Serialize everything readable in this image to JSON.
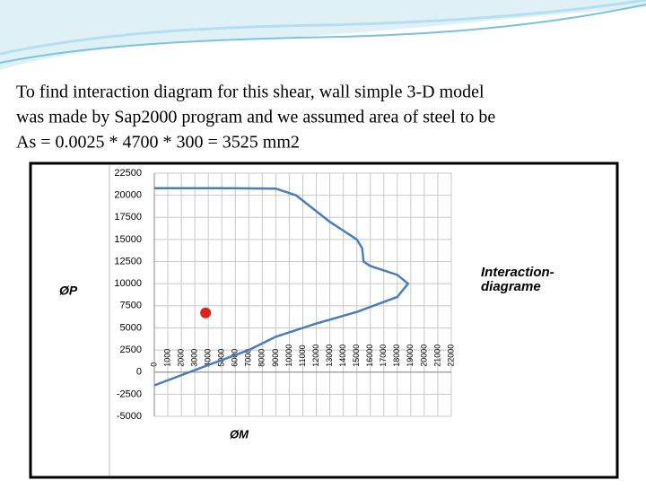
{
  "slide": {
    "lines": [
      "To find interaction diagram for this shear, wall simple 3-D model",
      "was made by Sap2000 program and we assumed area of steel to be",
      "As = 0.0025 * 4700 * 300 = 3525 mm2"
    ]
  },
  "chart_data": {
    "type": "line",
    "y_label": "ØP",
    "x_label": "ØM",
    "annotation": [
      "Interaction-",
      "diagrame"
    ],
    "xlim": [
      0,
      22000
    ],
    "ylim": [
      -5000,
      22500
    ],
    "xticks": [
      0,
      1000,
      2000,
      3000,
      4000,
      5000,
      6000,
      7000,
      8000,
      9000,
      10000,
      11000,
      12000,
      13000,
      14000,
      15000,
      16000,
      17000,
      18000,
      19000,
      20000,
      21000,
      22000
    ],
    "yticks": [
      -5000,
      -2500,
      0,
      2500,
      5000,
      7500,
      10000,
      12500,
      15000,
      17500,
      20000,
      22500
    ],
    "grid": true,
    "series": [
      {
        "type": "line",
        "color": "#4a7ebb",
        "x": [
          0,
          5000,
          9000,
          10500,
          13000,
          15000,
          15400,
          15500,
          16000,
          18000,
          18800,
          18000,
          15000,
          12000,
          9000,
          7000,
          4000,
          0
        ],
        "values": [
          20800,
          20800,
          20750,
          20000,
          17000,
          15000,
          14000,
          12500,
          12000,
          11000,
          10000,
          8500,
          6800,
          5500,
          4000,
          2500,
          800,
          -1500
        ]
      },
      {
        "type": "scatter",
        "color": "#e0201b",
        "x": [
          3800
        ],
        "values": [
          6700
        ]
      }
    ]
  }
}
